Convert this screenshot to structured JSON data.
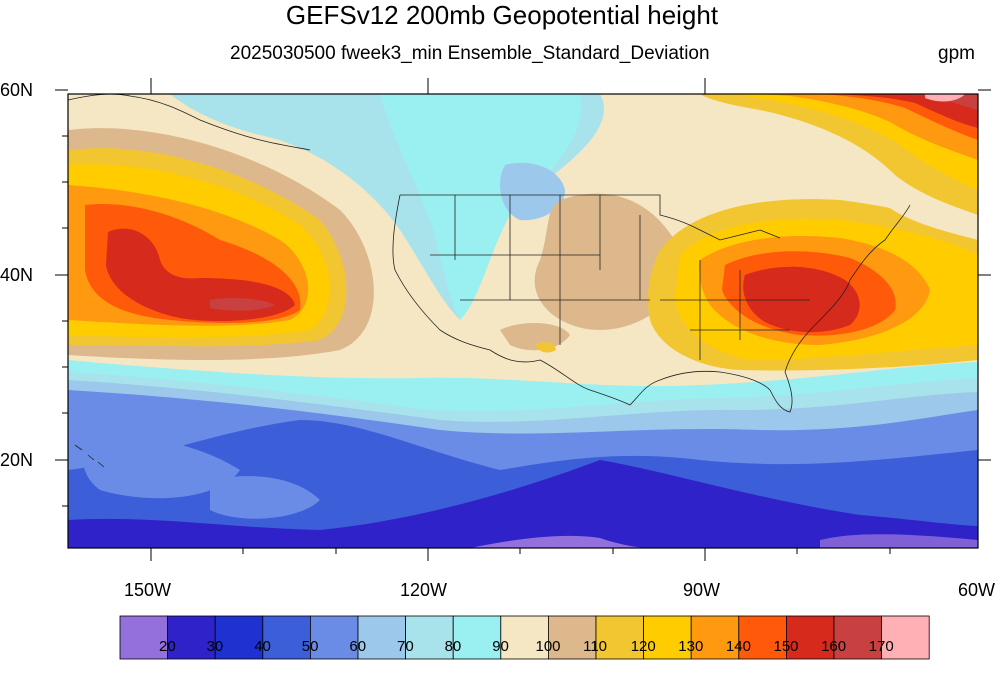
{
  "title": "GEFSv12 200mb Geopotential height",
  "subtitle": "2025030500 fweek3_min Ensemble_Standard_Deviation",
  "units": "gpm",
  "axes": {
    "lat_labels": [
      "60N",
      "40N",
      "20N"
    ],
    "lon_labels": [
      "150W",
      "120W",
      "90W",
      "60W"
    ]
  },
  "colorbar": {
    "labels": [
      "20",
      "30",
      "40",
      "50",
      "60",
      "70",
      "80",
      "90",
      "100",
      "110",
      "120",
      "130",
      "140",
      "150",
      "160",
      "170"
    ],
    "colors": [
      "#9370db",
      "#2e22c8",
      "#1e32d2",
      "#3c5ed8",
      "#6b8ce6",
      "#9cc8ec",
      "#a8e2ea",
      "#9af0f0",
      "#f5e6c4",
      "#dcb88c",
      "#f2c630",
      "#ffcc00",
      "#ff9910",
      "#ff5a0a",
      "#d62b1c",
      "#c84040",
      "#ffb0b4"
    ]
  }
}
